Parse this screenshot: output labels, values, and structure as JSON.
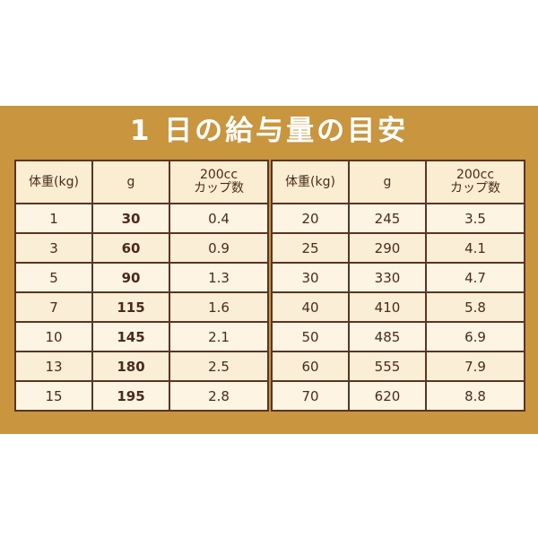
{
  "title": "1 日の給与量の目安",
  "headers": {
    "weight": "体重(kg)",
    "grams": "g",
    "cup_line1": "200cc",
    "cup_line2": "カップ数"
  },
  "left_rows": [
    {
      "weight": "1",
      "grams": "30",
      "cups": "0.4"
    },
    {
      "weight": "3",
      "grams": "60",
      "cups": "0.9"
    },
    {
      "weight": "5",
      "grams": "90",
      "cups": "1.3"
    },
    {
      "weight": "7",
      "grams": "115",
      "cups": "1.6"
    },
    {
      "weight": "10",
      "grams": "145",
      "cups": "2.1"
    },
    {
      "weight": "13",
      "grams": "180",
      "cups": "2.5"
    },
    {
      "weight": "15",
      "grams": "195",
      "cups": "2.8"
    }
  ],
  "right_rows": [
    {
      "weight": "20",
      "grams": "245",
      "cups": "3.5"
    },
    {
      "weight": "25",
      "grams": "290",
      "cups": "4.1"
    },
    {
      "weight": "30",
      "grams": "330",
      "cups": "4.7"
    },
    {
      "weight": "40",
      "grams": "410",
      "cups": "5.8"
    },
    {
      "weight": "50",
      "grams": "485",
      "cups": "6.9"
    },
    {
      "weight": "60",
      "grams": "555",
      "cups": "7.9"
    },
    {
      "weight": "70",
      "grams": "620",
      "cups": "8.8"
    }
  ],
  "colors": {
    "panel_background": "#c9953f",
    "cell_background": "#fdf3e0",
    "border": "#5a3424",
    "text": "#4b2a1e"
  }
}
